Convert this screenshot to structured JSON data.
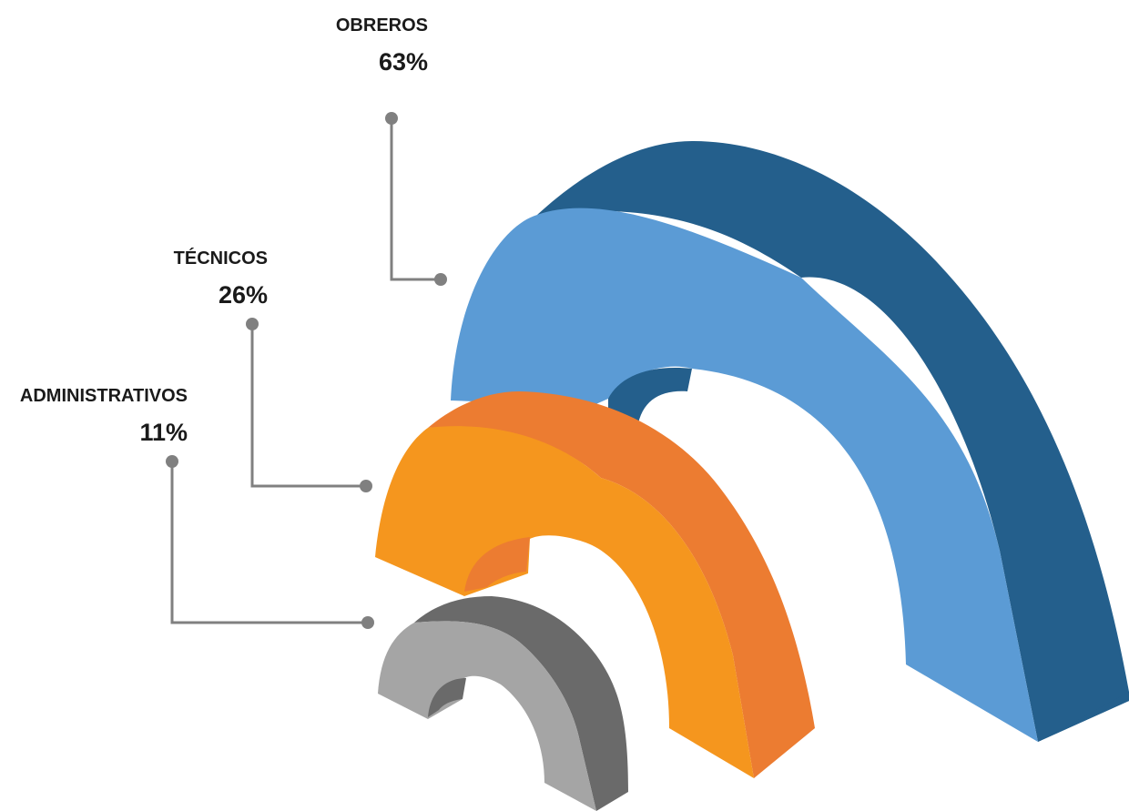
{
  "chart_data": {
    "type": "3d-semicircular-rings",
    "unit": "%",
    "series": [
      {
        "label": "OBREROS",
        "value": 63,
        "value_label": "63%",
        "front_color": "#5b9bd5",
        "side_color": "#245f8c"
      },
      {
        "label": "TÉCNICOS",
        "value": 26,
        "value_label": "26%",
        "front_color": "#f5961e",
        "side_color": "#ec7c31"
      },
      {
        "label": "ADMINISTRATIVOS",
        "value": 11,
        "value_label": "11%",
        "front_color": "#a5a5a5",
        "side_color": "#6a6a6a"
      }
    ],
    "leader_color": "#808080"
  }
}
